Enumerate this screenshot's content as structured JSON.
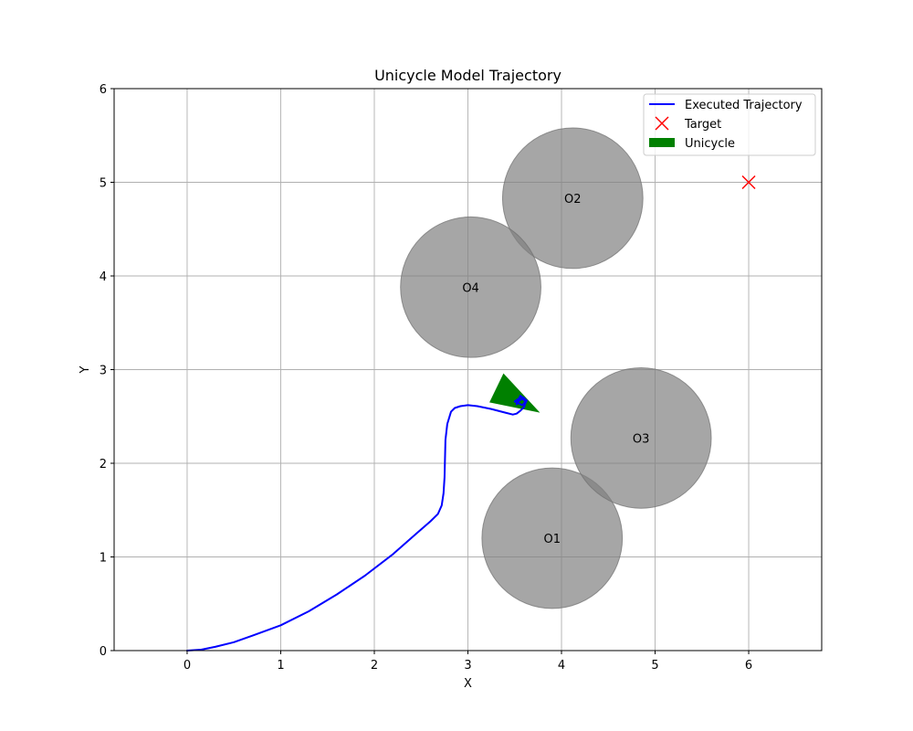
{
  "chart_data": {
    "type": "line",
    "title": "Unicycle Model Trajectory",
    "xlabel": "X",
    "ylabel": "Y",
    "xlim": [
      -0.78,
      6.78
    ],
    "ylim": [
      0,
      6
    ],
    "xticks": [
      0,
      1,
      2,
      3,
      4,
      5,
      6
    ],
    "yticks": [
      0,
      1,
      2,
      3,
      4,
      5,
      6
    ],
    "grid": true,
    "legend_position": "upper right",
    "legend": [
      {
        "label": "Executed Trajectory",
        "kind": "line",
        "color": "#0000ff"
      },
      {
        "label": "Target",
        "kind": "x-marker",
        "color": "#ff0000"
      },
      {
        "label": "Unicycle",
        "kind": "patch",
        "color": "#008000"
      }
    ],
    "trajectory": {
      "name": "Executed Trajectory",
      "color": "#0000ff",
      "x": [
        0.0,
        0.15,
        0.3,
        0.5,
        0.7,
        1.0,
        1.3,
        1.6,
        1.9,
        2.2,
        2.45,
        2.6,
        2.68,
        2.72,
        2.74,
        2.75,
        2.755,
        2.76,
        2.78,
        2.82,
        2.86,
        2.92,
        3.0,
        3.1,
        3.25,
        3.4,
        3.48,
        3.52,
        3.56,
        3.6,
        3.62,
        3.6,
        3.55,
        3.52,
        3.56,
        3.63,
        3.58,
        3.5,
        3.57,
        3.62
      ],
      "y": [
        0.0,
        0.01,
        0.04,
        0.09,
        0.16,
        0.27,
        0.42,
        0.6,
        0.8,
        1.03,
        1.25,
        1.38,
        1.46,
        1.55,
        1.68,
        1.85,
        2.05,
        2.25,
        2.42,
        2.55,
        2.59,
        2.61,
        2.62,
        2.61,
        2.58,
        2.54,
        2.52,
        2.53,
        2.56,
        2.6,
        2.66,
        2.7,
        2.67,
        2.63,
        2.72,
        2.67,
        2.62,
        2.66,
        2.71,
        2.65
      ]
    },
    "target": {
      "name": "Target",
      "x": 6.0,
      "y": 5.0,
      "color": "#ff0000"
    },
    "obstacles": [
      {
        "label": "O1",
        "x": 3.9,
        "y": 1.2,
        "r": 0.75
      },
      {
        "label": "O2",
        "x": 4.12,
        "y": 4.83,
        "r": 0.75
      },
      {
        "label": "O3",
        "x": 4.85,
        "y": 2.27,
        "r": 0.75
      },
      {
        "label": "O4",
        "x": 3.03,
        "y": 3.88,
        "r": 0.75
      }
    ],
    "obstacle_color": "#808080",
    "unicycle": {
      "name": "Unicycle",
      "color": "#008000",
      "vertices": [
        [
          3.38,
          2.96
        ],
        [
          3.23,
          2.65
        ],
        [
          3.77,
          2.54
        ]
      ]
    }
  }
}
